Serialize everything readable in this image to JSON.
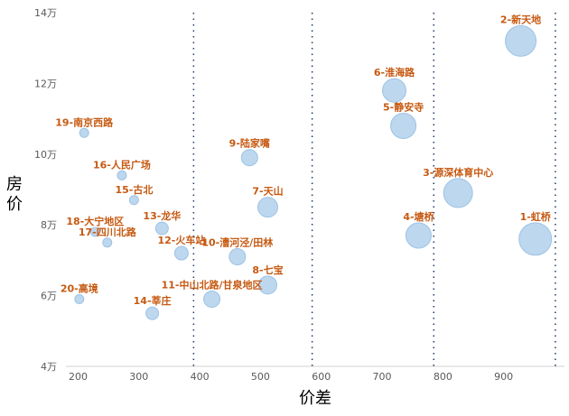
{
  "chart_data": {
    "type": "scatter",
    "xlabel": "价差",
    "ylabel": "房价",
    "xlim": [
      180,
      1000
    ],
    "ylim": [
      4,
      14
    ],
    "x_ticks": [
      {
        "value": 200,
        "label": "200"
      },
      {
        "value": 300,
        "label": "300"
      },
      {
        "value": 400,
        "label": "400"
      },
      {
        "value": 500,
        "label": "500"
      },
      {
        "value": 600,
        "label": "600"
      },
      {
        "value": 700,
        "label": "700"
      },
      {
        "value": 800,
        "label": "800"
      },
      {
        "value": 900,
        "label": "900"
      }
    ],
    "y_ticks": [
      {
        "value": 4,
        "label": "4万"
      },
      {
        "value": 6,
        "label": "6万"
      },
      {
        "value": 8,
        "label": "8万"
      },
      {
        "value": 10,
        "label": "10万"
      },
      {
        "value": 12,
        "label": "12万"
      },
      {
        "value": 14,
        "label": "14万"
      }
    ],
    "reference_lines_x": [
      390,
      585,
      785,
      985
    ],
    "grid": false,
    "points": [
      {
        "label": "1-虹桥",
        "x": 952,
        "y": 7.6,
        "size": 18
      },
      {
        "label": "2-新天地",
        "x": 928,
        "y": 13.2,
        "size": 17
      },
      {
        "label": "3-源深体育中心",
        "x": 825,
        "y": 8.9,
        "size": 16
      },
      {
        "label": "4-塘桥",
        "x": 760,
        "y": 7.7,
        "size": 14
      },
      {
        "label": "5-静安寺",
        "x": 735,
        "y": 10.8,
        "size": 14
      },
      {
        "label": "6-淮海路",
        "x": 720,
        "y": 11.8,
        "size": 13
      },
      {
        "label": "7-天山",
        "x": 512,
        "y": 8.5,
        "size": 11
      },
      {
        "label": "8-七宝",
        "x": 512,
        "y": 6.3,
        "size": 10
      },
      {
        "label": "9-陆家嘴",
        "x": 482,
        "y": 9.9,
        "size": 9
      },
      {
        "label": "10-漕河泾/田林",
        "x": 462,
        "y": 7.1,
        "size": 9
      },
      {
        "label": "11-中山北路/甘泉地区",
        "x": 420,
        "y": 5.9,
        "size": 9
      },
      {
        "label": "12-火车站",
        "x": 370,
        "y": 7.2,
        "size": 7.5
      },
      {
        "label": "13-龙华",
        "x": 338,
        "y": 7.9,
        "size": 7
      },
      {
        "label": "14-莘庄",
        "x": 322,
        "y": 5.5,
        "size": 7
      },
      {
        "label": "15-古北",
        "x": 292,
        "y": 8.7,
        "size": 5
      },
      {
        "label": "16-人民广场",
        "x": 272,
        "y": 9.4,
        "size": 5
      },
      {
        "label": "17-四川北路",
        "x": 248,
        "y": 7.5,
        "size": 5
      },
      {
        "label": "18-大宁地区",
        "x": 228,
        "y": 7.8,
        "size": 5
      },
      {
        "label": "19-南京西路",
        "x": 210,
        "y": 10.6,
        "size": 5
      },
      {
        "label": "20-高境",
        "x": 202,
        "y": 5.9,
        "size": 5
      }
    ]
  }
}
